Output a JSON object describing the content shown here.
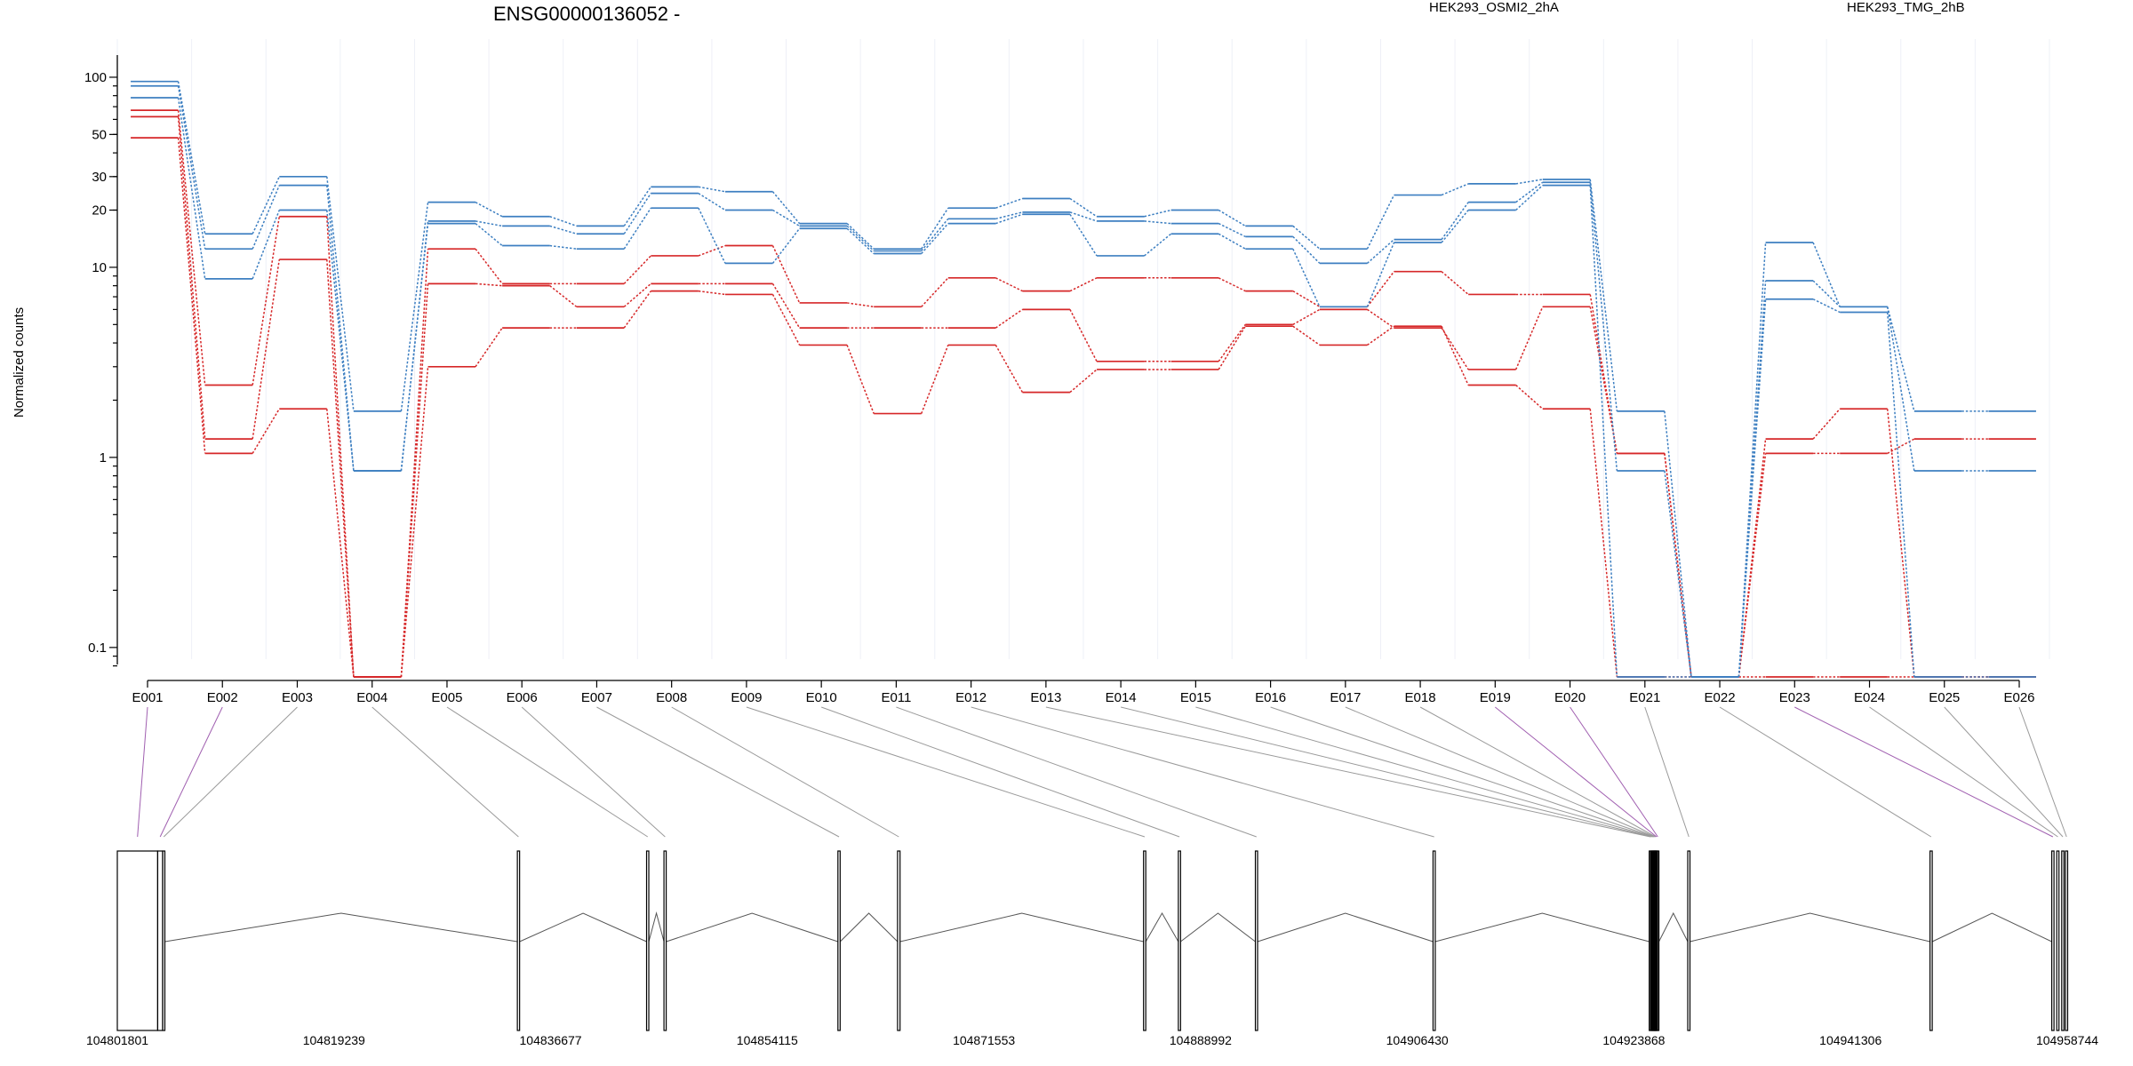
{
  "page": {
    "title": "ENSG00000136052 -",
    "ylabel": "Normalized counts"
  },
  "colors": {
    "condition_a": "#d62728",
    "condition_b": "#3d7fc1",
    "significant_exon": "#ee22ee",
    "connector": "#9a9a9a",
    "connector_significant": "#a05fb0"
  },
  "chart_data": {
    "type": "line",
    "yscale": "log",
    "ylim": [
      0.07,
      120
    ],
    "yticks": [
      0.1,
      1,
      10,
      20,
      30,
      50,
      100
    ],
    "ytick_labels": [
      "0.1",
      "1",
      "10",
      "20",
      "30",
      "50",
      "100"
    ],
    "categories": [
      "E001",
      "E002",
      "E003",
      "E004",
      "E005",
      "E006",
      "E007",
      "E008",
      "E009",
      "E010",
      "E011",
      "E012",
      "E013",
      "E014",
      "E015",
      "E016",
      "E017",
      "E018",
      "E019",
      "E020",
      "E021",
      "E022",
      "E023",
      "E024",
      "E025",
      "E026"
    ],
    "legend": [
      "HEK293_OSMI2_2hA",
      "HEK293_TMG_2hB"
    ],
    "series": [
      {
        "group": "HEK293_OSMI2_2hA",
        "values": [
          67,
          2.4,
          18.5,
          0.07,
          12.5,
          8.2,
          8.2,
          11.5,
          13,
          6.5,
          6.2,
          8.8,
          7.5,
          8.8,
          8.8,
          7.5,
          6.2,
          9.5,
          7.2,
          7.2,
          1.05,
          0.07,
          1.05,
          1.05,
          1.25,
          1.25
        ]
      },
      {
        "group": "HEK293_OSMI2_2hA",
        "values": [
          62,
          1.25,
          11,
          0.07,
          8.2,
          8.0,
          6.2,
          8.2,
          8.2,
          4.8,
          4.8,
          4.8,
          6.0,
          3.2,
          3.2,
          5.0,
          6.0,
          4.8,
          2.9,
          6.2,
          1.05,
          0.07,
          1.25,
          1.8,
          0.07,
          0.07
        ]
      },
      {
        "group": "HEK293_OSMI2_2hA",
        "values": [
          48,
          1.05,
          1.8,
          0.07,
          3.0,
          4.8,
          4.8,
          7.5,
          7.2,
          3.9,
          1.7,
          3.9,
          2.2,
          2.9,
          2.9,
          4.9,
          3.9,
          4.9,
          2.4,
          1.8,
          0.07,
          0.07,
          0.07,
          0.07,
          0.07,
          0.07
        ]
      },
      {
        "group": "HEK293_TMG_2hB",
        "values": [
          95,
          15,
          30,
          1.75,
          22,
          18.5,
          16.5,
          26.5,
          25,
          17,
          12.5,
          20.5,
          23,
          18.5,
          20,
          16.5,
          12.5,
          24,
          27.5,
          29,
          1.75,
          0.07,
          13.5,
          6.2,
          1.75,
          1.75
        ]
      },
      {
        "group": "HEK293_TMG_2hB",
        "values": [
          90,
          12.5,
          27,
          0.85,
          17.5,
          16.5,
          15,
          24.5,
          20,
          16.5,
          12.2,
          18,
          19.5,
          17.5,
          17,
          14.5,
          10.5,
          14,
          22,
          28,
          0.85,
          0.07,
          8.5,
          6.2,
          0.85,
          0.85
        ]
      },
      {
        "group": "HEK293_TMG_2hB",
        "values": [
          78,
          8.7,
          20,
          0.85,
          17,
          13,
          12.5,
          20.5,
          10.5,
          16,
          11.8,
          17,
          19,
          11.5,
          15,
          12.5,
          6.2,
          13.5,
          20,
          27,
          0.07,
          0.07,
          6.8,
          5.8,
          0.07,
          0.07
        ]
      }
    ],
    "gene_model": {
      "coord_range": [
        104801801,
        104958744
      ],
      "coord_ticks": [
        "104801801",
        "104819239",
        "104836677",
        "104854115",
        "104871553",
        "104888992",
        "104906430",
        "104923868",
        "104941306",
        "104958744"
      ],
      "exons": [
        {
          "id": "E001",
          "start": 104801801,
          "end": 104805050,
          "significant": true
        },
        {
          "id": "E002",
          "start": 104805050,
          "end": 104805450,
          "significant": true
        },
        {
          "id": "E003",
          "start": 104805450,
          "end": 104805560,
          "significant": false
        },
        {
          "id": "E004",
          "start": 104834000,
          "end": 104834180,
          "significant": false
        },
        {
          "id": "E005",
          "start": 104844400,
          "end": 104844580,
          "significant": false
        },
        {
          "id": "E006",
          "start": 104845800,
          "end": 104845950,
          "significant": false
        },
        {
          "id": "E007",
          "start": 104859800,
          "end": 104859950,
          "significant": false
        },
        {
          "id": "E008",
          "start": 104864600,
          "end": 104864800,
          "significant": false
        },
        {
          "id": "E009",
          "start": 104884400,
          "end": 104884550,
          "significant": false
        },
        {
          "id": "E010",
          "start": 104887200,
          "end": 104887350,
          "significant": false
        },
        {
          "id": "E011",
          "start": 104893400,
          "end": 104893560,
          "significant": false
        },
        {
          "id": "E012",
          "start": 104907700,
          "end": 104907850,
          "significant": false
        },
        {
          "id": "E013",
          "start": 104925100,
          "end": 104925200,
          "significant": false
        },
        {
          "id": "E014",
          "start": 104925200,
          "end": 104925300,
          "significant": false
        },
        {
          "id": "E015",
          "start": 104925300,
          "end": 104925380,
          "significant": false
        },
        {
          "id": "E016",
          "start": 104925380,
          "end": 104925450,
          "significant": false
        },
        {
          "id": "E017",
          "start": 104925450,
          "end": 104925520,
          "significant": false
        },
        {
          "id": "E018",
          "start": 104925520,
          "end": 104925600,
          "significant": false
        },
        {
          "id": "E019",
          "start": 104925600,
          "end": 104925700,
          "significant": true
        },
        {
          "id": "E020",
          "start": 104925700,
          "end": 104925800,
          "significant": true
        },
        {
          "id": "E021",
          "start": 104928200,
          "end": 104928350,
          "significant": false
        },
        {
          "id": "E022",
          "start": 104947700,
          "end": 104947850,
          "significant": false
        },
        {
          "id": "E023",
          "start": 104957500,
          "end": 104957600,
          "significant": true
        },
        {
          "id": "E024",
          "start": 104957900,
          "end": 104958000,
          "significant": false
        },
        {
          "id": "E025",
          "start": 104958300,
          "end": 104958450,
          "significant": false
        },
        {
          "id": "E026",
          "start": 104958600,
          "end": 104958744,
          "significant": false
        }
      ]
    }
  }
}
